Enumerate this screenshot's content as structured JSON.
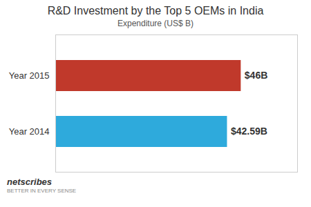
{
  "chart_data": {
    "type": "bar",
    "orientation": "horizontal",
    "title": "R&D Investment by the Top 5 OEMs in India",
    "subtitle": "Expenditure (US$ B)",
    "categories": [
      "Year 2015",
      "Year 2014"
    ],
    "values": [
      46,
      42.59
    ],
    "colors": [
      "#c0392b",
      "#2eaadc"
    ],
    "data_labels": true,
    "value_labels": [
      "$46B",
      "$42.59B"
    ],
    "xlim": [
      0,
      60
    ],
    "tick_labels": "y",
    "annotations": [
      "netscribes",
      "BETTER IN EVERY SENSE"
    ]
  }
}
